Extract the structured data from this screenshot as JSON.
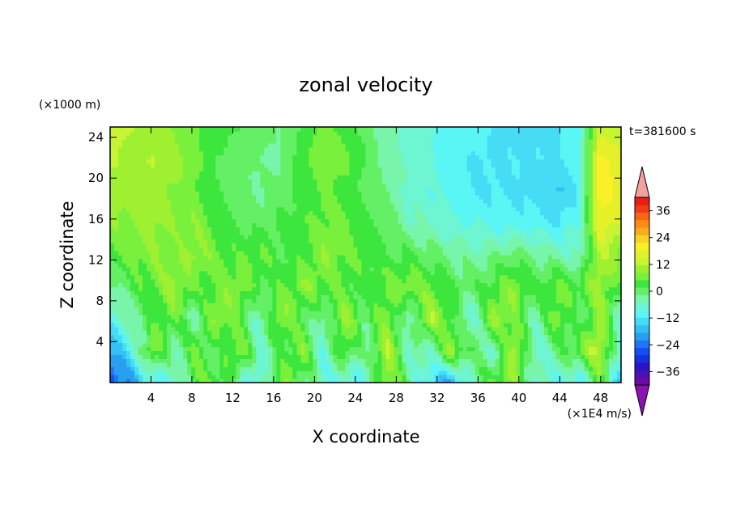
{
  "chart_data": {
    "type": "heatmap",
    "title": "zonal velocity",
    "xlabel": "X coordinate",
    "ylabel": "Z coordinate",
    "x_units": "(×1E4 m/s)",
    "y_units": "(×1000 m)",
    "time_label": "t=381600 s",
    "xlim": [
      0,
      50
    ],
    "ylim": [
      0,
      25
    ],
    "x_ticks": [
      4,
      8,
      12,
      16,
      20,
      24,
      28,
      32,
      36,
      40,
      44,
      48
    ],
    "y_ticks": [
      4,
      8,
      12,
      16,
      20,
      24
    ],
    "colorbar": {
      "tick_values": [
        36,
        24,
        12,
        0,
        -12,
        -24,
        -36
      ],
      "tick_labels": [
        "36",
        "24",
        "12",
        "0",
        "−12",
        "−24",
        "−36"
      ],
      "levels_min": -42,
      "levels_max": 42,
      "level_step": 4,
      "over_color": "#f4a0a0",
      "under_color": "#8c10b4",
      "colors": [
        "#6a0aa8",
        "#4a12b0",
        "#2a14c8",
        "#1432e0",
        "#1450f0",
        "#1e78f5",
        "#28a0f0",
        "#32c0f5",
        "#46dcf5",
        "#5af5f5",
        "#6ef5d2",
        "#78f5aa",
        "#64f064",
        "#3ce63c",
        "#78f03c",
        "#a0f032",
        "#c8f532",
        "#e6f028",
        "#faf028",
        "#fad228",
        "#faaa1e",
        "#fa8c14",
        "#fa6414",
        "#f03c14",
        "#e61e14"
      ]
    },
    "field_description_rows_bottom_to_top": [
      [
        -30,
        -20,
        -10,
        -8,
        4,
        6,
        -4,
        -10,
        8,
        2,
        -6,
        -10,
        -8,
        10,
        -2,
        -12,
        -20,
        -4,
        6,
        8,
        -6,
        -8,
        -12,
        4,
        -16
      ],
      [
        -20,
        -10,
        8,
        -4,
        6,
        -2,
        10,
        -6,
        0,
        8,
        -8,
        6,
        -4,
        12,
        -4,
        -6,
        10,
        0,
        -6,
        12,
        -8,
        -2,
        6,
        14,
        -10
      ],
      [
        -8,
        -4,
        2,
        6,
        -4,
        10,
        4,
        -6,
        10,
        2,
        -4,
        10,
        0,
        8,
        -6,
        12,
        4,
        -8,
        10,
        6,
        -4,
        8,
        -2,
        10,
        -6
      ],
      [
        -4,
        2,
        6,
        10,
        4,
        6,
        8,
        2,
        4,
        8,
        6,
        4,
        2,
        6,
        8,
        6,
        2,
        0,
        4,
        8,
        2,
        6,
        4,
        10,
        2
      ],
      [
        4,
        6,
        8,
        6,
        10,
        6,
        4,
        6,
        2,
        4,
        8,
        6,
        4,
        2,
        2,
        0,
        -2,
        -4,
        -2,
        0,
        -2,
        -4,
        -6,
        12,
        8
      ],
      [
        8,
        8,
        10,
        8,
        8,
        4,
        2,
        0,
        2,
        4,
        6,
        6,
        2,
        0,
        -4,
        -6,
        -8,
        -8,
        -10,
        -10,
        -10,
        -12,
        -8,
        18,
        14
      ],
      [
        12,
        10,
        10,
        8,
        6,
        2,
        0,
        -2,
        0,
        2,
        6,
        4,
        0,
        -2,
        -6,
        -8,
        -10,
        -12,
        -12,
        -12,
        -14,
        -16,
        -12,
        22,
        16
      ],
      [
        12,
        10,
        12,
        10,
        6,
        2,
        0,
        -2,
        -2,
        4,
        8,
        6,
        2,
        -4,
        -6,
        -8,
        -10,
        -12,
        -12,
        -12,
        -12,
        -12,
        -10,
        20,
        16
      ],
      [
        14,
        12,
        10,
        8,
        6,
        2,
        2,
        0,
        -2,
        2,
        6,
        4,
        0,
        -4,
        -6,
        -8,
        -10,
        -10,
        -12,
        -12,
        -12,
        -12,
        -10,
        14,
        12
      ]
    ]
  }
}
